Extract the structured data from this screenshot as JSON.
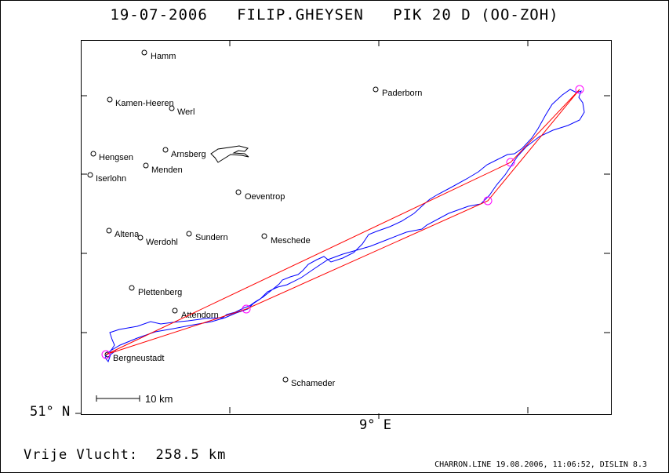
{
  "header": {
    "title": "19-07-2006   FILIP.GHEYSEN   PIK 20 D (OO-ZOH)"
  },
  "axes": {
    "latitude_label": "51° N",
    "longitude_label": "9° E"
  },
  "scale_bar": {
    "label": "10 km"
  },
  "summary": {
    "distance_text": "Vrije Vlucht:  258.5 km"
  },
  "footer": {
    "text": "CHARRON.LINE 19.08.2006, 11:06:52, DISLIN 8.3"
  },
  "colors": {
    "track": "#0000ff",
    "task_line": "#ff0000",
    "turnpoint": "#ff00ff",
    "frame": "#000000"
  },
  "cities": [
    {
      "name": "Hamm"
    },
    {
      "name": "Kamen-Heeren"
    },
    {
      "name": "Werl"
    },
    {
      "name": "Paderborn"
    },
    {
      "name": "Arnsberg"
    },
    {
      "name": "Hengsen"
    },
    {
      "name": "Menden"
    },
    {
      "name": "Iserlohn"
    },
    {
      "name": "Oeventrop"
    },
    {
      "name": "Altena"
    },
    {
      "name": "Werdohl"
    },
    {
      "name": "Sundern"
    },
    {
      "name": "Meschede"
    },
    {
      "name": "Plettenberg"
    },
    {
      "name": "Attendorn"
    },
    {
      "name": "Bergneustadt"
    },
    {
      "name": "Schameder"
    }
  ]
}
